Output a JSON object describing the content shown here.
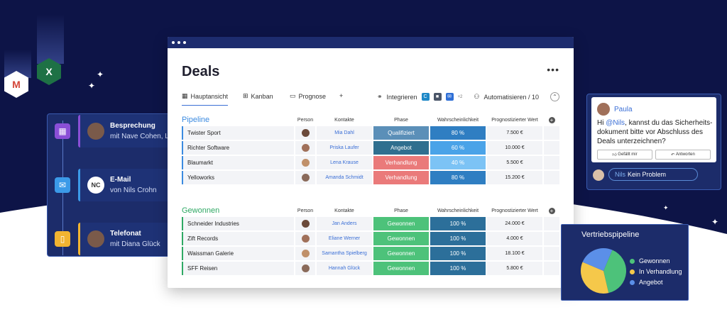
{
  "app": {
    "title": "Deals",
    "menu_dots": "•••",
    "tabs": [
      {
        "label": "Hauptansicht",
        "active": true
      },
      {
        "label": "Kanban"
      },
      {
        "label": "Prognose"
      }
    ],
    "add_tab": "+",
    "integrate_label": "Integrieren",
    "integrate_count": "+2",
    "automate_label": "Automatisieren / 10",
    "collapse_icon": "chevron-up-icon"
  },
  "columns": {
    "person": "Person",
    "kontakte": "Kontakte",
    "phase": "Phase",
    "wahr": "Wahrscheinlichkeit",
    "wert": "Prognostizierter Wert"
  },
  "groups": [
    {
      "title": "Pipeline",
      "color": "#3b8ae0",
      "rows": [
        {
          "name": "Twister Sport",
          "kontakt": "Mia Dahl",
          "phase": "Qualifiziert",
          "phase_color": "#5b8fb8",
          "wahr": "80 %",
          "wahr_color": "#2f7ec2",
          "wert": "7.500 €"
        },
        {
          "name": "Richter Software",
          "kontakt": "Priska Laufer",
          "phase": "Angebot",
          "phase_color": "#2f6f8f",
          "wahr": "60 %",
          "wahr_color": "#4aa3e8",
          "wert": "10.000 €"
        },
        {
          "name": "Blaumarkt",
          "kontakt": "Lena Krause",
          "phase": "Verhandlung",
          "phase_color": "#ea7a7a",
          "wahr": "40 %",
          "wahr_color": "#7cc3f5",
          "wert": "5.500 €"
        },
        {
          "name": "Yelloworks",
          "kontakt": "Amanda Schmidt",
          "phase": "Verhandlung",
          "phase_color": "#ea7a7a",
          "wahr": "80 %",
          "wahr_color": "#2f7ec2",
          "wert": "15.200 €"
        }
      ]
    },
    {
      "title": "Gewonnen",
      "color": "#2fa864",
      "rows": [
        {
          "name": "Schneider Industries",
          "kontakt": "Jan Anders",
          "phase": "Gewonnen",
          "phase_color": "#4dc27a",
          "wahr": "100 %",
          "wahr_color": "#2c6f9a",
          "wert": "24.000 €"
        },
        {
          "name": "Zift Records",
          "kontakt": "Eliane Werner",
          "phase": "Gewonnen",
          "phase_color": "#4dc27a",
          "wahr": "100 %",
          "wahr_color": "#2c6f9a",
          "wert": "4.000 €"
        },
        {
          "name": "Waissman Galerie",
          "kontakt": "Samantha Spielberg",
          "phase": "Gewonnen",
          "phase_color": "#4dc27a",
          "wahr": "100 %",
          "wahr_color": "#2c6f9a",
          "wert": "18.100 €"
        },
        {
          "name": "SFF Reisen",
          "kontakt": "Hannah Glück",
          "phase": "Gewonnen",
          "phase_color": "#4dc27a",
          "wahr": "100 %",
          "wahr_color": "#2c6f9a",
          "wert": "5.800 €"
        }
      ]
    }
  ],
  "timeline": [
    {
      "title": "Besprechung",
      "sub": "mit Nave Cohen, Lital",
      "icon": "calendar-icon",
      "color": "#8a4fd6"
    },
    {
      "title": "E-Mail",
      "sub": "von Nils Crohn",
      "icon": "mail-icon",
      "color": "#3b9ae8",
      "initials": "NC"
    },
    {
      "title": "Telefonat",
      "sub": "mit Diana Glück",
      "icon": "phone-icon",
      "color": "#f2b431"
    }
  ],
  "chat": {
    "author": "Paula",
    "text_pre": "Hi ",
    "mention": "@Nils",
    "text_post": ", kannst du das Sicherheits-dokument bitte vor Abschluss des Deals unterzeichnen?",
    "like_label": "Gefällt mir",
    "reply_label": "Antworten",
    "reply_name": "Nils",
    "reply_text": "Kein Problem"
  },
  "chart_data": {
    "type": "pie",
    "title": "Vertriebspipeline",
    "categories": [
      "Gewonnen",
      "In Verhandlung",
      "Angebot"
    ],
    "values": [
      40,
      35,
      25
    ],
    "colors": [
      "#4dc27a",
      "#f5c84a",
      "#5b8fe8"
    ],
    "legend": "right"
  }
}
